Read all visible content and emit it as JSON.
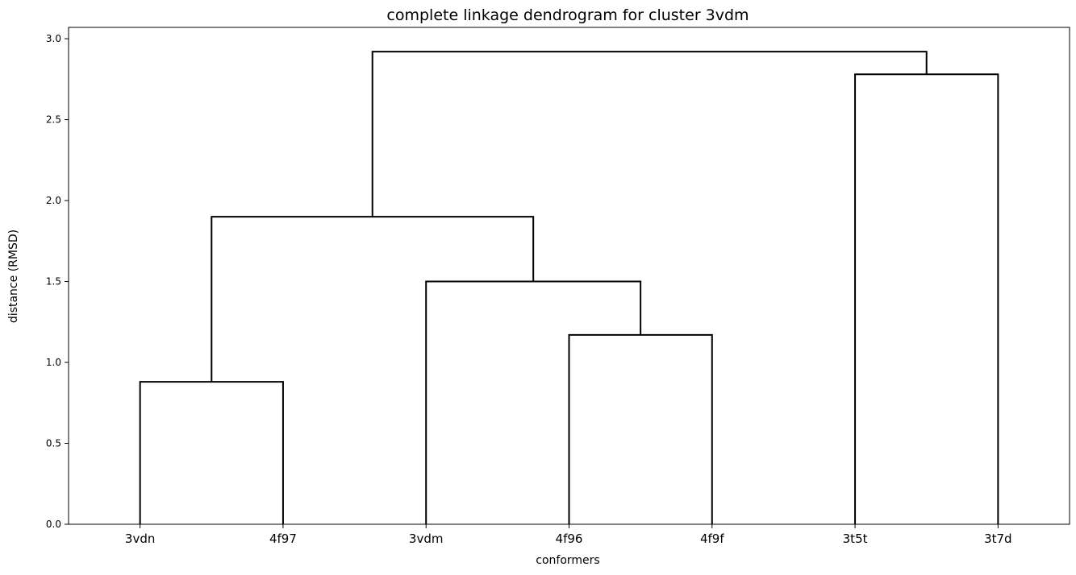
{
  "chart_data": {
    "type": "dendrogram",
    "title": "complete linkage dendrogram for cluster 3vdm",
    "xlabel": "conformers",
    "ylabel": "distance (RMSD)",
    "leaves": [
      "3vdn",
      "4f97",
      "3vdm",
      "4f96",
      "4f9f",
      "3t5t",
      "3t7d"
    ],
    "yticks": [
      "0.0",
      "0.5",
      "1.0",
      "1.5",
      "2.0",
      "2.5",
      "3.0"
    ],
    "ylim": [
      0,
      3.07
    ],
    "line_color": "#000000",
    "merges": [
      {
        "left": "3vdn",
        "right": "4f97",
        "height": 0.88
      },
      {
        "left": "4f96",
        "right": "4f9f",
        "height": 1.17
      },
      {
        "left": "3vdm",
        "right": "4f96+4f9f",
        "height": 1.5
      },
      {
        "left": "3vdn+4f97",
        "right": "3vdm+4f96+4f9f",
        "height": 1.9
      },
      {
        "left": "3t5t",
        "right": "3t7d",
        "height": 2.78
      },
      {
        "left": "3vdn+4f97+3vdm+4f96+4f9f",
        "right": "3t5t+3t7d",
        "height": 2.92
      }
    ],
    "grid": false
  }
}
